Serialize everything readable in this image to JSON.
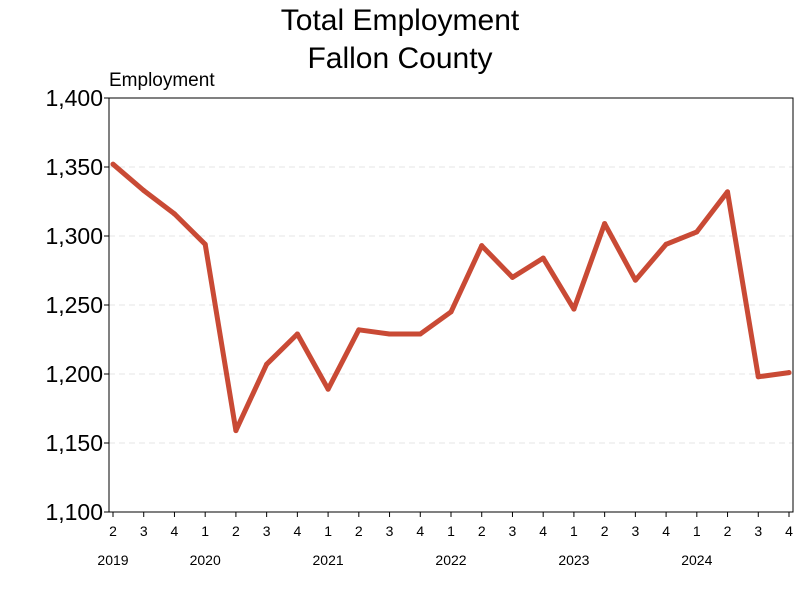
{
  "chart_data": {
    "type": "line",
    "title": [
      "Total Employment",
      "Fallon County"
    ],
    "ylabel": "Employment",
    "ylim": [
      1100,
      1400
    ],
    "yticks": [
      1100,
      1150,
      1200,
      1250,
      1300,
      1350,
      1400
    ],
    "ytick_labels": [
      "1,100",
      "1,150",
      "1,200",
      "1,250",
      "1,300",
      "1,350",
      "1,400"
    ],
    "grid": "horizontal-dashed",
    "line_color": "#c94a35",
    "x": [
      "2019 Q2",
      "2019 Q3",
      "2019 Q4",
      "2020 Q1",
      "2020 Q2",
      "2020 Q3",
      "2020 Q4",
      "2021 Q1",
      "2021 Q2",
      "2021 Q3",
      "2021 Q4",
      "2022 Q1",
      "2022 Q2",
      "2022 Q3",
      "2022 Q4",
      "2023 Q1",
      "2023 Q2",
      "2023 Q3",
      "2023 Q4",
      "2024 Q1",
      "2024 Q2",
      "2024 Q3",
      "2024 Q4"
    ],
    "quarter_labels": [
      "2",
      "3",
      "4",
      "1",
      "2",
      "3",
      "4",
      "1",
      "2",
      "3",
      "4",
      "1",
      "2",
      "3",
      "4",
      "1",
      "2",
      "3",
      "4",
      "1",
      "2",
      "3",
      "4"
    ],
    "years": [
      {
        "label": "2019",
        "first_index": 0
      },
      {
        "label": "2020",
        "first_index": 3
      },
      {
        "label": "2021",
        "first_index": 7
      },
      {
        "label": "2022",
        "first_index": 11
      },
      {
        "label": "2023",
        "first_index": 15
      },
      {
        "label": "2024",
        "first_index": 19
      }
    ],
    "series": [
      {
        "values": [
          1352,
          1333,
          1316,
          1294,
          1159,
          1207,
          1229,
          1189,
          1232,
          1229,
          1229,
          1245,
          1293,
          1270,
          1284,
          1247,
          1309,
          1268,
          1294,
          1303,
          1332,
          1198,
          1201
        ]
      }
    ]
  }
}
